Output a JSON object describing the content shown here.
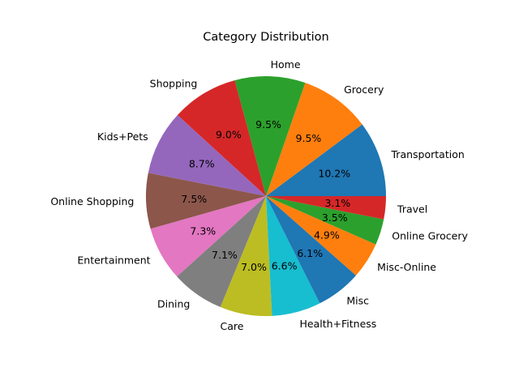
{
  "chart_data": {
    "type": "pie",
    "title": "Category Distribution",
    "start_angle_deg": 0,
    "direction": "counterclockwise",
    "slices": [
      {
        "label": "Transportation",
        "value": 10.2,
        "pct_label": "10.2%",
        "color": "#1f77b4"
      },
      {
        "label": "Grocery",
        "value": 9.5,
        "pct_label": "9.5%",
        "color": "#ff7f0e"
      },
      {
        "label": "Home",
        "value": 9.5,
        "pct_label": "9.5%",
        "color": "#2ca02c"
      },
      {
        "label": "Shopping",
        "value": 9.0,
        "pct_label": "9.0%",
        "color": "#d62728"
      },
      {
        "label": "Kids+Pets",
        "value": 8.7,
        "pct_label": "8.7%",
        "color": "#9467bd"
      },
      {
        "label": "Online Shopping",
        "value": 7.5,
        "pct_label": "7.5%",
        "color": "#8c564b"
      },
      {
        "label": "Entertainment",
        "value": 7.3,
        "pct_label": "7.3%",
        "color": "#e377c2"
      },
      {
        "label": "Dining",
        "value": 7.1,
        "pct_label": "7.1%",
        "color": "#7f7f7f"
      },
      {
        "label": "Care",
        "value": 7.0,
        "pct_label": "7.0%",
        "color": "#bcbd22"
      },
      {
        "label": "Health+Fitness",
        "value": 6.6,
        "pct_label": "6.6%",
        "color": "#17becf"
      },
      {
        "label": "Misc",
        "value": 6.1,
        "pct_label": "6.1%",
        "color": "#1f77b4"
      },
      {
        "label": "Misc-Online",
        "value": 4.9,
        "pct_label": "4.9%",
        "color": "#ff7f0e"
      },
      {
        "label": "Online Grocery",
        "value": 3.5,
        "pct_label": "3.5%",
        "color": "#2ca02c"
      },
      {
        "label": "Travel",
        "value": 3.1,
        "pct_label": "3.1%",
        "color": "#d62728"
      }
    ]
  }
}
